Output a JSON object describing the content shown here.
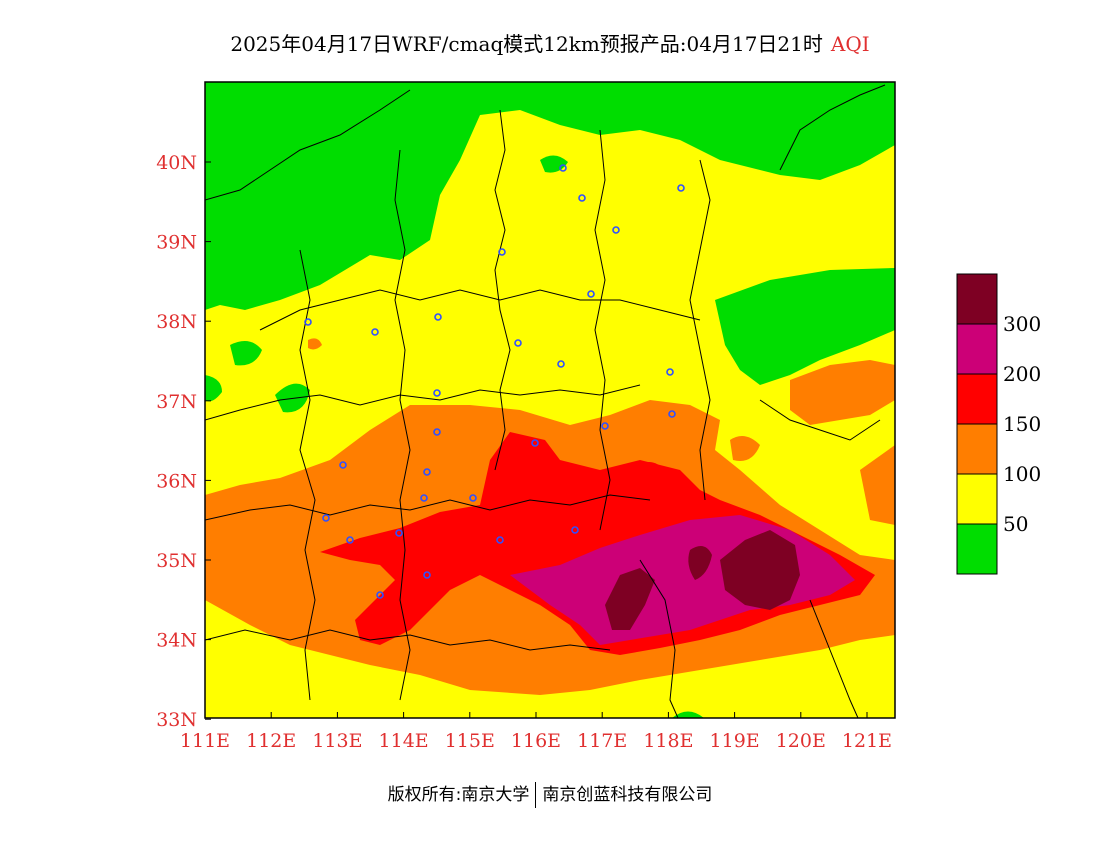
{
  "title": {
    "main": "2025年04月17日WRF/cmaq模式12km预报产品:04月17日21时",
    "variable": "AQI",
    "variable_color": "#e03030"
  },
  "map": {
    "lon_labels": [
      "111E",
      "112E",
      "113E",
      "114E",
      "115E",
      "116E",
      "117E",
      "118E",
      "119E",
      "120E",
      "121E"
    ],
    "lat_labels": [
      "40N",
      "39N",
      "38N",
      "37N",
      "36N",
      "35N",
      "34N",
      "33N"
    ],
    "axis_label_color": "#e03030",
    "city_marker_color": "#3050ff"
  },
  "legend": {
    "levels": [
      {
        "label": "50",
        "color": "#00dd00"
      },
      {
        "label": "100",
        "color": "#ffff00"
      },
      {
        "label": "150",
        "color": "#ff7e00"
      },
      {
        "label": "200",
        "color": "#ff0000"
      },
      {
        "label": "300",
        "color": "#cc0077"
      },
      {
        "label": "",
        "color": "#7e0023"
      }
    ]
  },
  "footer": {
    "copyright_label": "版权所有:",
    "org1": "南京大学",
    "org2": "南京创蓝科技有限公司"
  }
}
